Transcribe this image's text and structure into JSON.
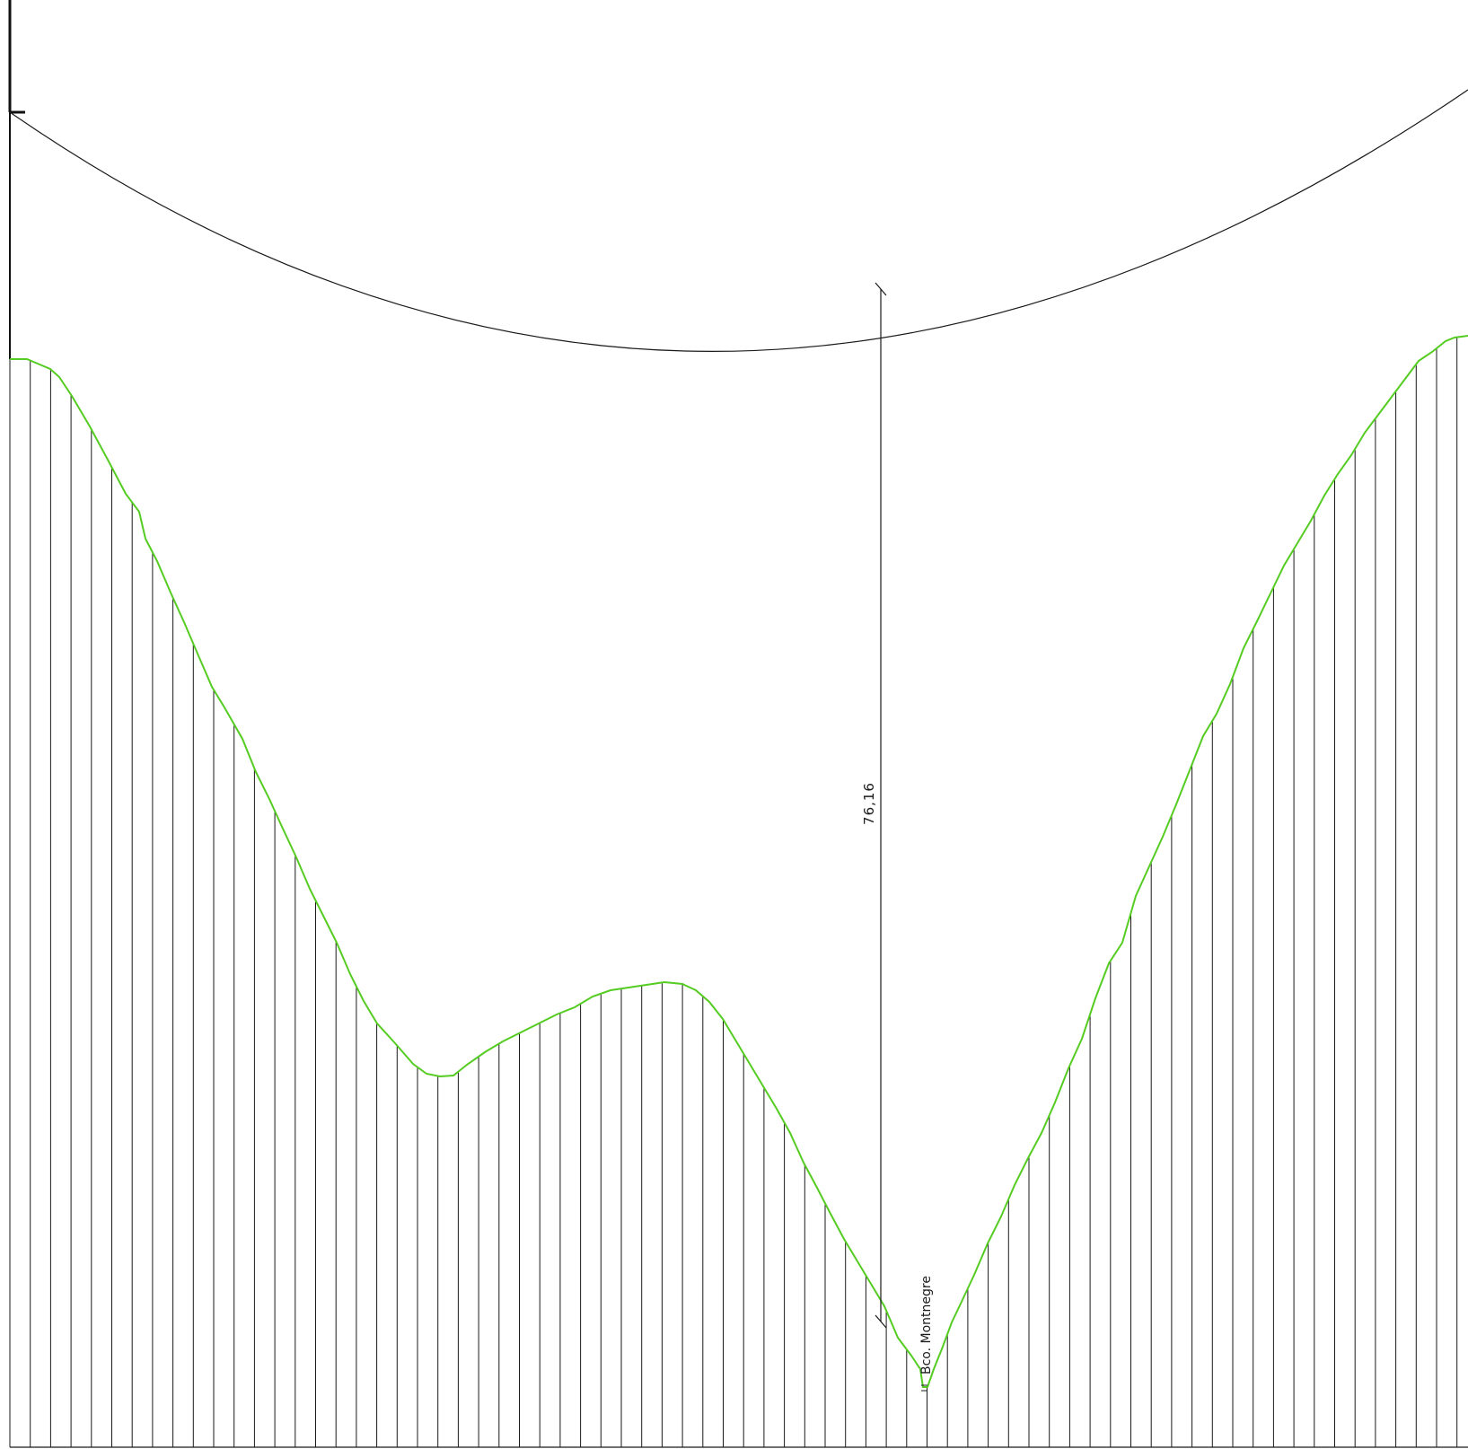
{
  "dimension": {
    "value": "76,16"
  },
  "stream_label": {
    "text": "Bco. Montnegre"
  },
  "colors": {
    "terrain": "#55cc22",
    "lines": "#1a1a1a",
    "background": "#ffffff"
  }
}
